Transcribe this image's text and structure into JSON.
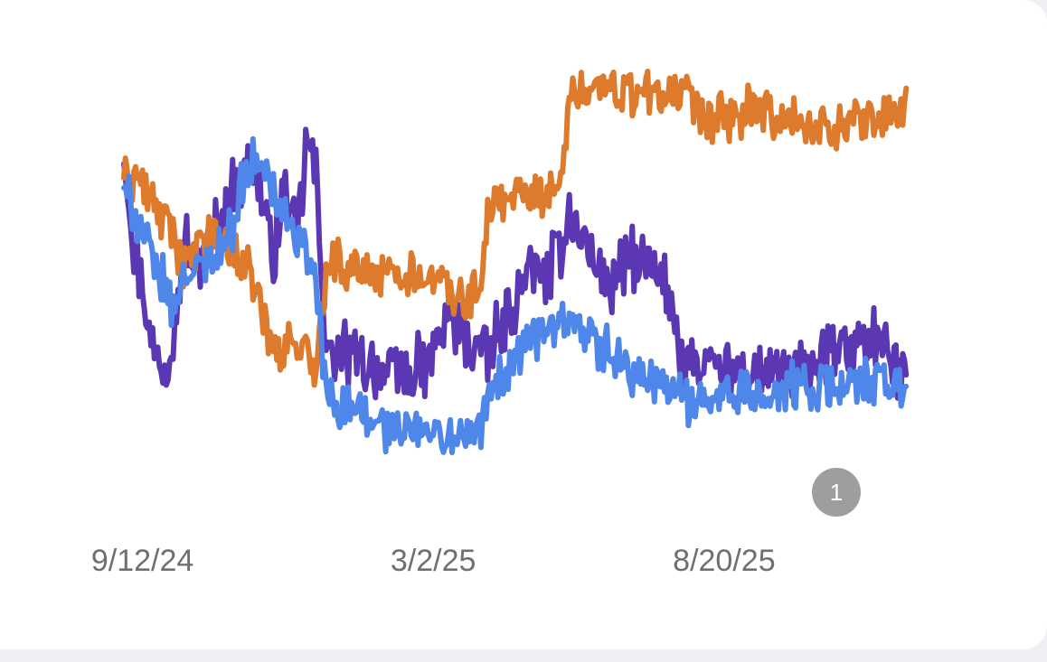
{
  "chart_data": {
    "type": "line",
    "x_start": "2024-09-01",
    "x_end": "2025-12-05",
    "xlim": [
      "2024-08-14",
      "2026-01-01"
    ],
    "ylim": [
      0,
      100
    ],
    "grid": false,
    "legend": "none",
    "xticks": [
      {
        "date": "2024-09-12",
        "label": "9/12/24"
      },
      {
        "date": "2025-03-02",
        "label": "3/2/25"
      },
      {
        "date": "2025-08-20",
        "label": "8/20/25"
      }
    ],
    "series": [
      {
        "color": "#5b37b4",
        "anchors": [
          [
            0,
            76
          ],
          [
            5,
            60
          ],
          [
            10,
            50
          ],
          [
            15,
            40
          ],
          [
            20,
            38
          ],
          [
            25,
            45
          ],
          [
            30,
            60
          ],
          [
            35,
            55
          ],
          [
            40,
            58
          ],
          [
            45,
            62
          ],
          [
            50,
            65
          ],
          [
            55,
            70
          ],
          [
            60,
            72
          ],
          [
            65,
            75
          ],
          [
            70,
            63
          ],
          [
            75,
            58
          ],
          [
            80,
            72
          ],
          [
            85,
            58
          ],
          [
            90,
            78
          ],
          [
            95,
            72
          ],
          [
            100,
            40
          ],
          [
            110,
            40
          ],
          [
            120,
            38
          ],
          [
            130,
            37
          ],
          [
            140,
            36
          ],
          [
            150,
            38
          ],
          [
            160,
            47
          ],
          [
            170,
            42
          ],
          [
            180,
            40
          ],
          [
            190,
            47
          ],
          [
            200,
            55
          ],
          [
            210,
            54
          ],
          [
            220,
            65
          ],
          [
            230,
            58
          ],
          [
            240,
            52
          ],
          [
            250,
            57
          ],
          [
            260,
            55
          ],
          [
            270,
            50
          ],
          [
            275,
            40
          ],
          [
            285,
            37
          ],
          [
            295,
            37
          ],
          [
            305,
            36
          ],
          [
            315,
            37
          ],
          [
            325,
            36
          ],
          [
            335,
            37
          ],
          [
            345,
            39
          ],
          [
            355,
            41
          ],
          [
            365,
            43
          ],
          [
            375,
            42
          ],
          [
            380,
            37
          ],
          [
            386,
            37
          ]
        ],
        "noise": 9
      },
      {
        "color": "#dd7a2c",
        "anchors": [
          [
            0,
            71
          ],
          [
            5,
            72
          ],
          [
            10,
            70
          ],
          [
            15,
            66
          ],
          [
            20,
            64
          ],
          [
            25,
            62
          ],
          [
            30,
            55
          ],
          [
            35,
            58
          ],
          [
            40,
            60
          ],
          [
            45,
            61
          ],
          [
            50,
            60
          ],
          [
            55,
            58
          ],
          [
            60,
            55
          ],
          [
            65,
            52
          ],
          [
            70,
            45
          ],
          [
            75,
            40
          ],
          [
            80,
            42
          ],
          [
            85,
            42
          ],
          [
            90,
            40
          ],
          [
            95,
            38
          ],
          [
            100,
            56
          ],
          [
            110,
            56
          ],
          [
            120,
            55
          ],
          [
            130,
            54
          ],
          [
            140,
            55
          ],
          [
            150,
            54
          ],
          [
            160,
            52
          ],
          [
            170,
            50
          ],
          [
            175,
            52
          ],
          [
            180,
            66
          ],
          [
            185,
            67
          ],
          [
            190,
            68
          ],
          [
            200,
            69
          ],
          [
            210,
            68
          ],
          [
            215,
            69
          ],
          [
            220,
            87
          ],
          [
            230,
            87
          ],
          [
            240,
            88
          ],
          [
            250,
            87
          ],
          [
            255,
            86
          ],
          [
            260,
            87
          ],
          [
            265,
            86
          ],
          [
            270,
            87
          ],
          [
            275,
            85
          ],
          [
            278,
            86
          ],
          [
            285,
            82
          ],
          [
            295,
            82
          ],
          [
            305,
            83
          ],
          [
            315,
            83
          ],
          [
            325,
            82
          ],
          [
            335,
            81
          ],
          [
            345,
            80
          ],
          [
            355,
            81
          ],
          [
            365,
            82
          ],
          [
            375,
            82
          ],
          [
            380,
            83
          ],
          [
            386,
            84
          ]
        ],
        "noise": 7
      },
      {
        "color": "#4f86ea",
        "anchors": [
          [
            0,
            70
          ],
          [
            5,
            65
          ],
          [
            10,
            62
          ],
          [
            15,
            55
          ],
          [
            20,
            52
          ],
          [
            25,
            48
          ],
          [
            30,
            55
          ],
          [
            35,
            55
          ],
          [
            40,
            56
          ],
          [
            45,
            58
          ],
          [
            50,
            60
          ],
          [
            55,
            65
          ],
          [
            60,
            72
          ],
          [
            65,
            74
          ],
          [
            70,
            73
          ],
          [
            75,
            68
          ],
          [
            80,
            64
          ],
          [
            85,
            60
          ],
          [
            90,
            58
          ],
          [
            95,
            52
          ],
          [
            100,
            33
          ],
          [
            110,
            30
          ],
          [
            120,
            28
          ],
          [
            130,
            27
          ],
          [
            140,
            26
          ],
          [
            150,
            26
          ],
          [
            160,
            25
          ],
          [
            170,
            25
          ],
          [
            175,
            26
          ],
          [
            180,
            32
          ],
          [
            190,
            38
          ],
          [
            200,
            43
          ],
          [
            210,
            44
          ],
          [
            220,
            45
          ],
          [
            230,
            42
          ],
          [
            240,
            40
          ],
          [
            250,
            37
          ],
          [
            260,
            35
          ],
          [
            270,
            33
          ],
          [
            280,
            32
          ],
          [
            290,
            33
          ],
          [
            300,
            33
          ],
          [
            310,
            33
          ],
          [
            320,
            33
          ],
          [
            330,
            34
          ],
          [
            340,
            34
          ],
          [
            350,
            35
          ],
          [
            360,
            34
          ],
          [
            370,
            35
          ],
          [
            380,
            34
          ],
          [
            386,
            34
          ]
        ],
        "noise": 7
      }
    ]
  },
  "badge": {
    "label": "1"
  }
}
